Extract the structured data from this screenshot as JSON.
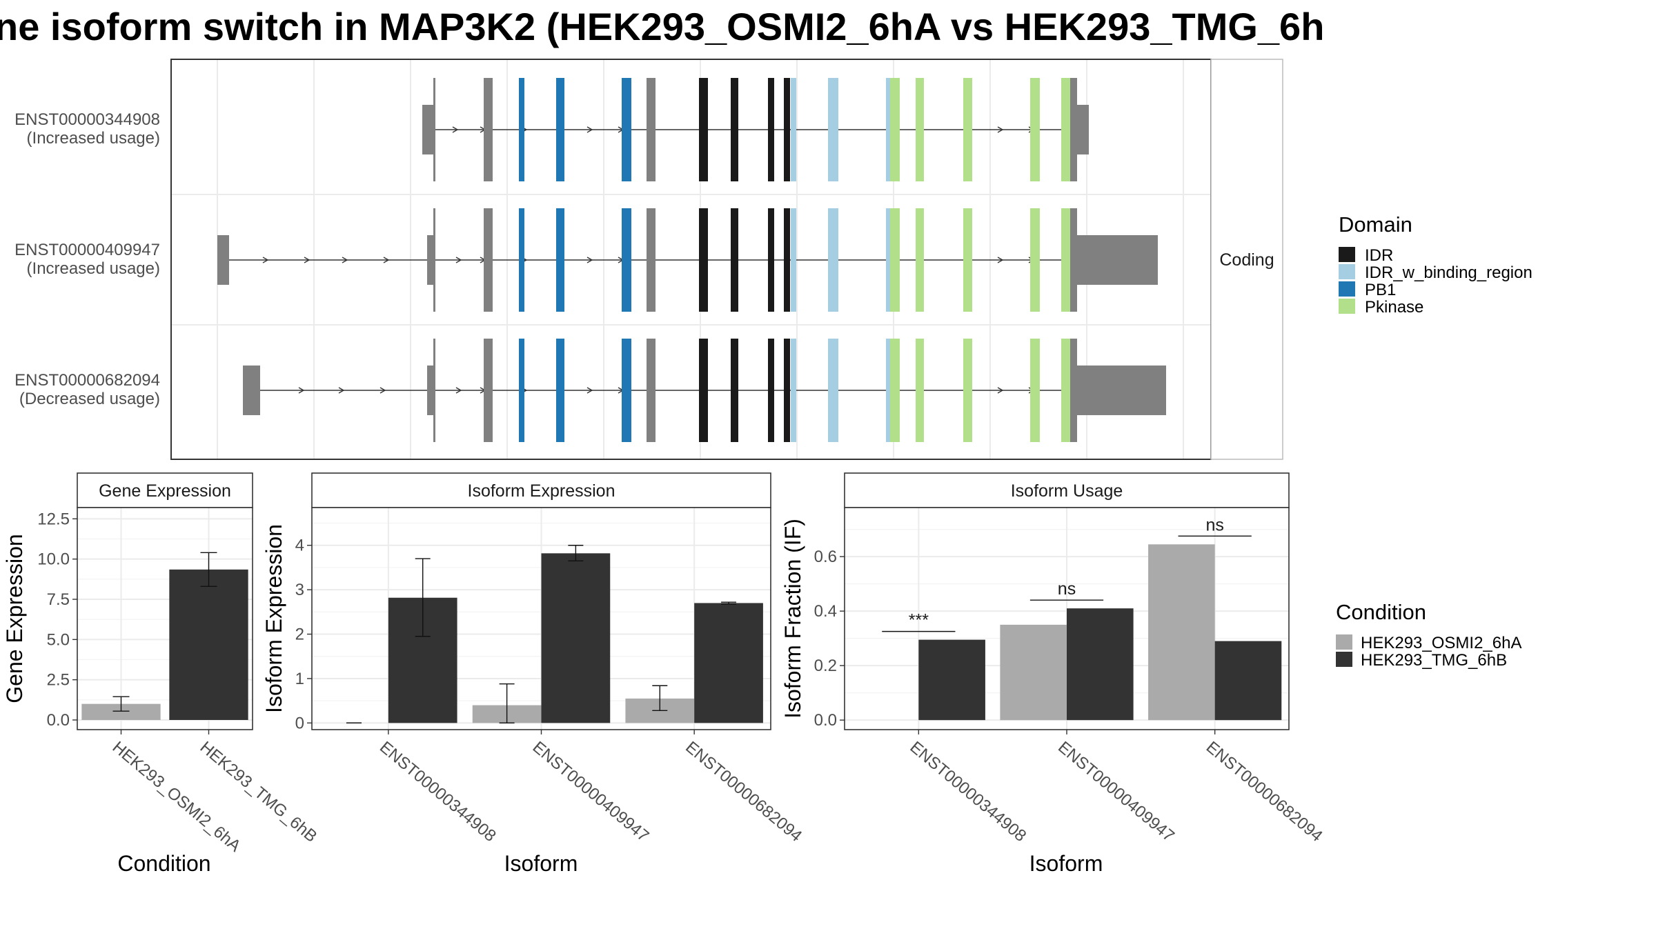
{
  "title": "ne isoform switch in MAP3K2 (HEK293_OSMI2_6hA vs HEK293_TMG_6h",
  "colors": {
    "IDR": "#1a1a1a",
    "IDR_w_binding_region": "#a6cee3",
    "PB1": "#1f78b4",
    "Pkinase": "#b2df8a",
    "noncoding_exon": "#808080",
    "cond_a": "#aaaaaa",
    "cond_b": "#333333"
  },
  "transcripts": {
    "strip_label": "Coding",
    "items": [
      {
        "id": "ENST00000344908",
        "usage": "(Increased usage)"
      },
      {
        "id": "ENST00000409947",
        "usage": "(Increased usage)"
      },
      {
        "id": "ENST00000682094",
        "usage": "(Decreased usage)"
      }
    ]
  },
  "legend_domain": {
    "title": "Domain",
    "items": [
      "IDR",
      "IDR_w_binding_region",
      "PB1",
      "Pkinase"
    ]
  },
  "legend_condition": {
    "title": "Condition",
    "items": [
      "HEK293_OSMI2_6hA",
      "HEK293_TMG_6hB"
    ]
  },
  "chart_data": [
    {
      "type": "bar",
      "title": "Gene Expression",
      "xlabel": "Condition",
      "ylabel": "Gene Expression",
      "ylim": [
        -0.6,
        13.2
      ],
      "yticks": [
        "0.0",
        "2.5",
        "5.0",
        "7.5",
        "10.0",
        "12.5"
      ],
      "categories": [
        "HEK293_OSMI2_6hA",
        "HEK293_TMG_6hB"
      ],
      "values": [
        1.0,
        9.35
      ],
      "errors": [
        [
          0.55,
          1.45
        ],
        [
          8.3,
          10.4
        ]
      ]
    },
    {
      "type": "bar",
      "title": "Isoform Expression",
      "xlabel": "Isoform",
      "ylabel": "Isoform Expression",
      "ylim": [
        -0.15,
        4.85
      ],
      "yticks": [
        "0",
        "1",
        "2",
        "3",
        "4"
      ],
      "categories": [
        "ENST00000344908",
        "ENST00000409947",
        "ENST00000682094"
      ],
      "series": [
        {
          "name": "HEK293_OSMI2_6hA",
          "values": [
            0.0,
            0.4,
            0.55
          ],
          "errors": [
            [
              0.0,
              0.0
            ],
            [
              0.0,
              0.88
            ],
            [
              0.28,
              0.84
            ]
          ]
        },
        {
          "name": "HEK293_TMG_6hB",
          "values": [
            2.82,
            3.82,
            2.7
          ],
          "errors": [
            [
              1.95,
              3.7
            ],
            [
              3.65,
              4.0
            ],
            [
              2.68,
              2.72
            ]
          ]
        }
      ]
    },
    {
      "type": "bar",
      "title": "Isoform Usage",
      "xlabel": "Isoform",
      "ylabel": "Isoform Fraction (IF)",
      "ylim": [
        -0.035,
        0.78
      ],
      "yticks": [
        "0.0",
        "0.2",
        "0.4",
        "0.6"
      ],
      "categories": [
        "ENST00000344908",
        "ENST00000409947",
        "ENST00000682094"
      ],
      "series": [
        {
          "name": "HEK293_OSMI2_6hA",
          "values": [
            0.0,
            0.35,
            0.645
          ]
        },
        {
          "name": "HEK293_TMG_6hB",
          "values": [
            0.295,
            0.41,
            0.29
          ]
        }
      ],
      "significance": [
        "***",
        "ns",
        "ns"
      ]
    }
  ]
}
